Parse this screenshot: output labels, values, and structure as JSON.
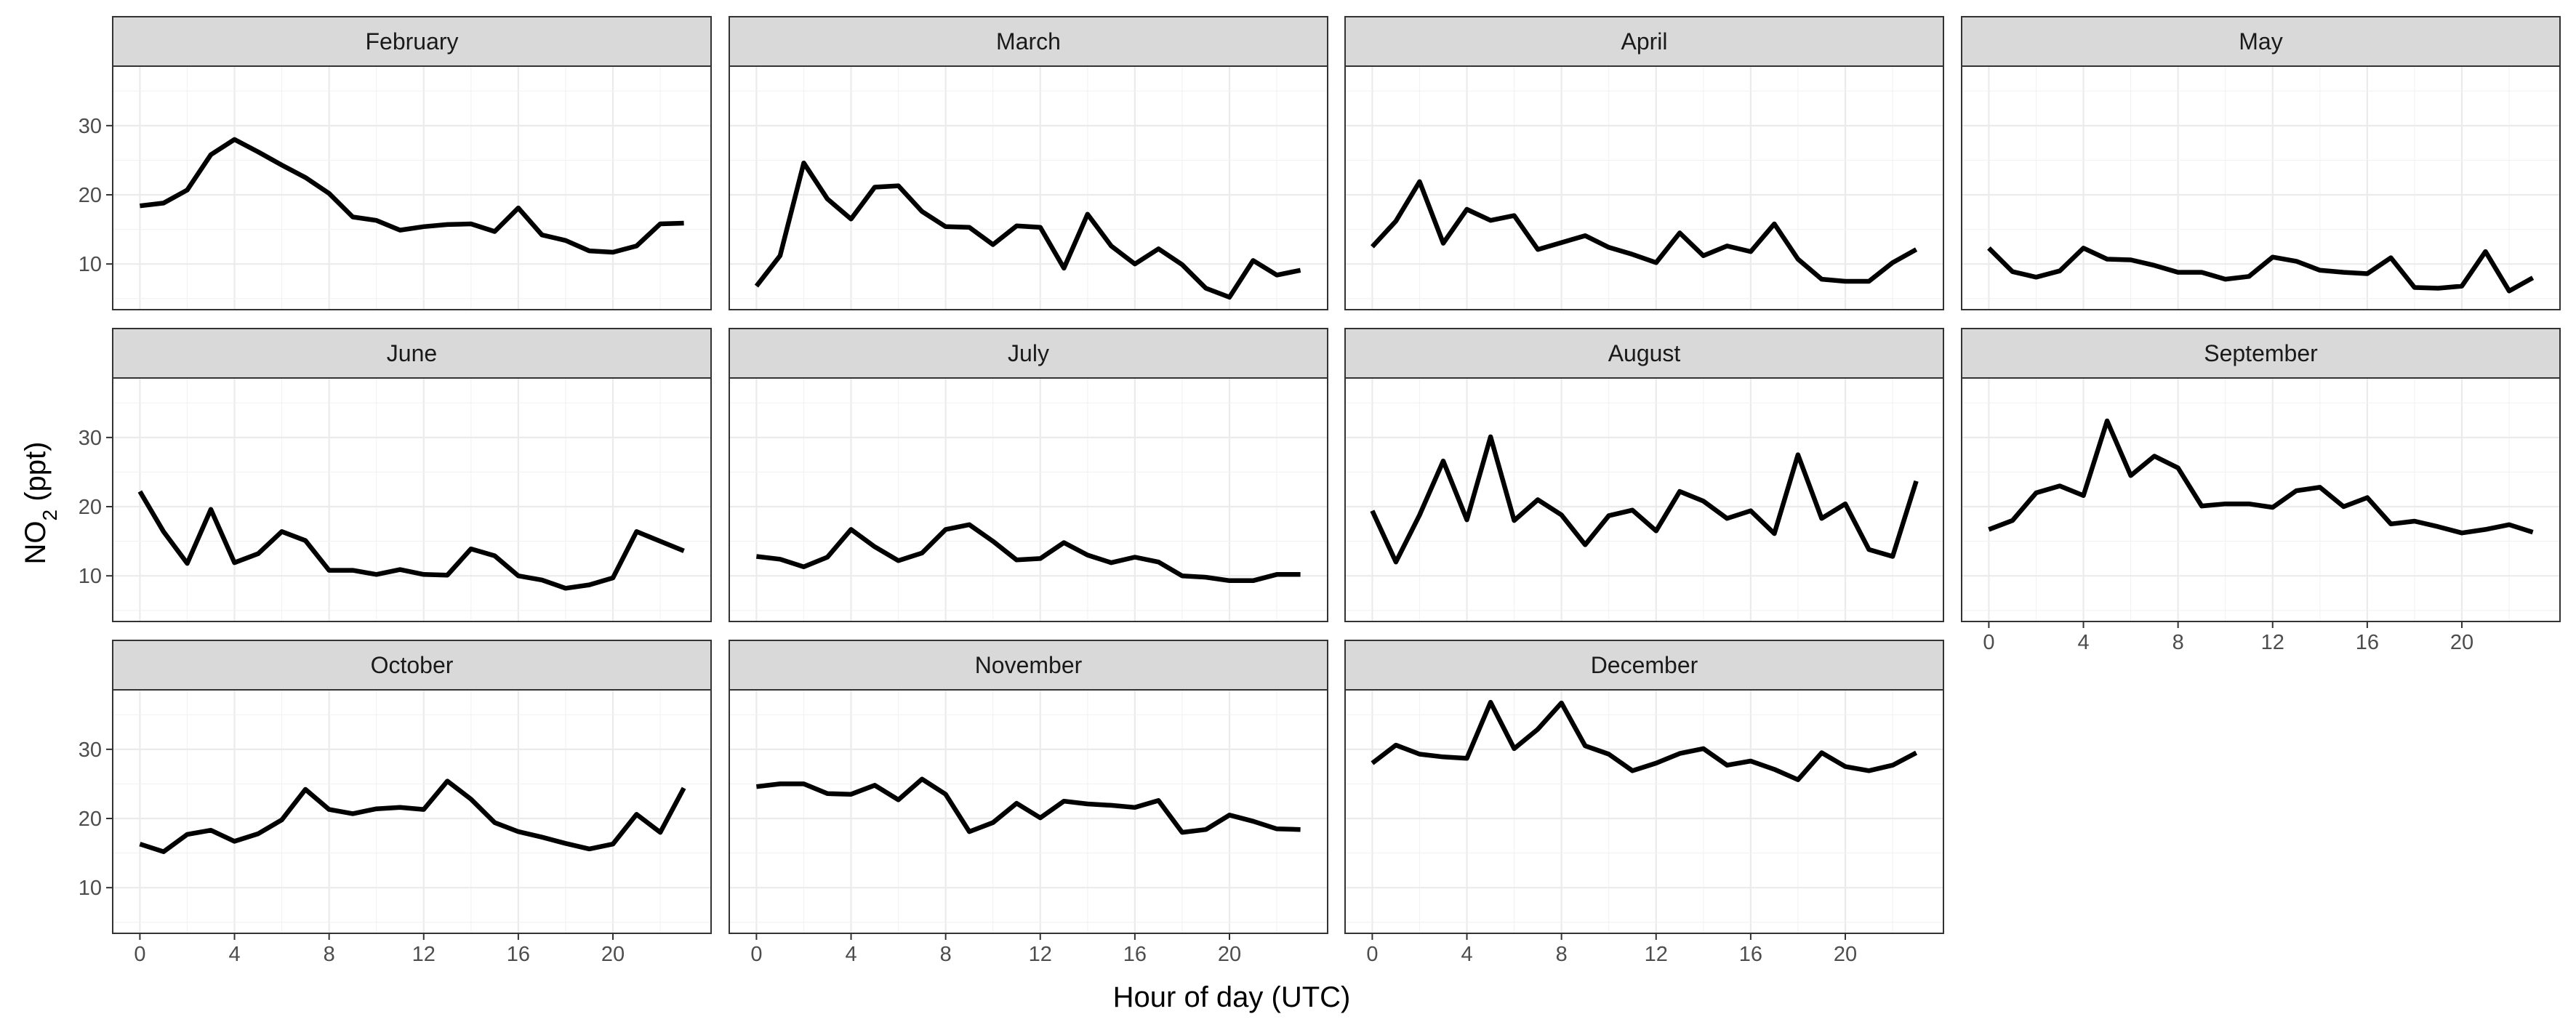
{
  "chart_data": {
    "type": "line",
    "xlabel": "Hour of day (UTC)",
    "ylabel": {
      "main": "NO",
      "sub": "2",
      "unit": " (ppt)"
    },
    "x_ticks": [
      0,
      4,
      8,
      12,
      16,
      20
    ],
    "y_ticks": [
      10,
      20,
      30
    ],
    "xlim": [
      -1.15,
      24.15
    ],
    "ylim": [
      3.4,
      38.6
    ],
    "grid": true,
    "x": [
      0,
      1,
      2,
      3,
      4,
      5,
      6,
      7,
      8,
      9,
      10,
      11,
      12,
      13,
      14,
      15,
      16,
      17,
      18,
      19,
      20,
      21,
      22,
      23
    ],
    "series": [
      {
        "name": "February",
        "values": [
          18.4,
          18.8,
          20.7,
          25.8,
          28.0,
          26.2,
          24.3,
          22.5,
          20.2,
          16.8,
          16.3,
          14.9,
          15.4,
          15.7,
          15.8,
          14.7,
          18.1,
          14.2,
          13.4,
          11.9,
          11.7,
          12.6,
          15.8,
          15.9
        ]
      },
      {
        "name": "March",
        "values": [
          6.8,
          11.2,
          24.6,
          19.4,
          16.5,
          21.1,
          21.3,
          17.6,
          15.4,
          15.3,
          12.8,
          15.5,
          15.3,
          9.4,
          17.2,
          12.6,
          10.0,
          12.2,
          9.9,
          6.5,
          5.2,
          10.5,
          8.4,
          9.1
        ]
      },
      {
        "name": "April",
        "values": [
          12.5,
          16.2,
          21.9,
          13.0,
          17.9,
          16.3,
          17.0,
          12.1,
          13.1,
          14.1,
          12.4,
          11.4,
          10.2,
          14.5,
          11.2,
          12.6,
          11.8,
          15.8,
          10.7,
          7.8,
          7.5,
          7.5,
          10.2,
          12.1
        ]
      },
      {
        "name": "May",
        "values": [
          12.3,
          8.9,
          8.1,
          9.0,
          12.3,
          10.7,
          10.6,
          9.8,
          8.8,
          8.8,
          7.8,
          8.2,
          11.0,
          10.4,
          9.1,
          8.8,
          8.6,
          10.9,
          6.6,
          6.5,
          6.8,
          11.8,
          6.1,
          8.0
        ]
      },
      {
        "name": "June",
        "values": [
          22.2,
          16.4,
          11.8,
          19.6,
          11.9,
          13.2,
          16.4,
          15.1,
          10.8,
          10.8,
          10.2,
          10.9,
          10.2,
          10.1,
          13.9,
          12.9,
          10.0,
          9.4,
          8.2,
          8.7,
          9.7,
          16.4,
          15.0,
          13.6
        ]
      },
      {
        "name": "July",
        "values": [
          12.8,
          12.4,
          11.3,
          12.7,
          16.7,
          14.2,
          12.2,
          13.3,
          16.7,
          17.4,
          15.0,
          12.3,
          12.5,
          14.8,
          13.0,
          11.9,
          12.7,
          12.0,
          10.0,
          9.8,
          9.3,
          9.3,
          10.2,
          10.2
        ]
      },
      {
        "name": "August",
        "values": [
          19.4,
          12.0,
          18.8,
          26.6,
          18.1,
          30.1,
          18.0,
          21.0,
          18.8,
          14.5,
          18.7,
          19.5,
          16.5,
          22.2,
          20.8,
          18.3,
          19.4,
          16.1,
          27.5,
          18.3,
          20.4,
          13.8,
          12.8,
          23.7
        ]
      },
      {
        "name": "September",
        "values": [
          16.7,
          18.0,
          22.0,
          23.0,
          21.6,
          32.4,
          24.5,
          27.3,
          25.6,
          20.1,
          20.4,
          20.4,
          19.9,
          22.3,
          22.8,
          20.0,
          21.3,
          17.5,
          17.9,
          17.1,
          16.2,
          16.7,
          17.4,
          16.3
        ]
      },
      {
        "name": "October",
        "values": [
          16.3,
          15.2,
          17.7,
          18.3,
          16.7,
          17.8,
          19.8,
          24.2,
          21.3,
          20.7,
          21.4,
          21.6,
          21.3,
          25.4,
          22.8,
          19.4,
          18.1,
          17.3,
          16.4,
          15.6,
          16.3,
          20.6,
          18.0,
          24.4
        ]
      },
      {
        "name": "November",
        "values": [
          24.6,
          25.0,
          25.0,
          23.6,
          23.5,
          24.8,
          22.7,
          25.7,
          23.5,
          18.1,
          19.4,
          22.2,
          20.1,
          22.5,
          22.1,
          21.9,
          21.6,
          22.6,
          18.0,
          18.4,
          20.5,
          19.6,
          18.5,
          18.4
        ]
      },
      {
        "name": "December",
        "values": [
          28.0,
          30.6,
          29.3,
          28.9,
          28.7,
          36.8,
          30.1,
          32.9,
          36.7,
          30.5,
          29.3,
          26.9,
          28.0,
          29.4,
          30.1,
          27.7,
          28.3,
          27.1,
          25.6,
          29.5,
          27.5,
          26.9,
          27.7,
          29.5
        ]
      }
    ]
  }
}
